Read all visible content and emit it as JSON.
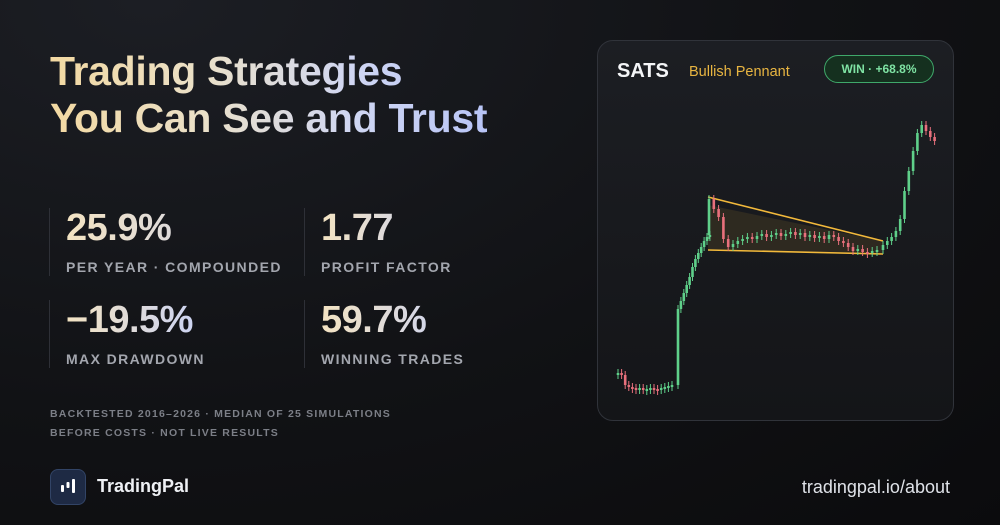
{
  "headline": {
    "line1": "Trading Strategies",
    "line2": "You Can See and Trust"
  },
  "stats": [
    {
      "value": "25.9%",
      "label": "PER YEAR · COMPOUNDED"
    },
    {
      "value": "1.77",
      "label": "PROFIT FACTOR"
    },
    {
      "value": "−19.5%",
      "label": "MAX DRAWDOWN"
    },
    {
      "value": "59.7%",
      "label": "WINNING TRADES"
    }
  ],
  "disclaimer": {
    "line1": "BACKTESTED 2016–2026 · MEDIAN OF 25 SIMULATIONS",
    "line2": "BEFORE COSTS · NOT LIVE RESULTS"
  },
  "brand": {
    "name": "TradingPal",
    "url": "tradingpal.io/about"
  },
  "card": {
    "ticker": "SATS",
    "pattern": "Bullish Pennant",
    "result": "WIN · +68.8%"
  },
  "colors": {
    "up": "#5fd08a",
    "down": "#e8707c",
    "pattern_line": "#f2b93b",
    "win_badge": "#7fe3a4"
  },
  "chart_data": {
    "type": "candlestick",
    "y_direction": "price rises upward",
    "pennant": {
      "start_index": 24,
      "end_index": 68
    }
  }
}
